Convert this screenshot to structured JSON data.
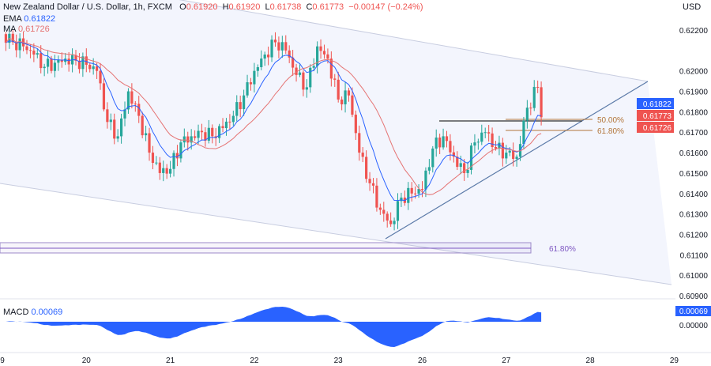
{
  "header": {
    "symbol": "New Zealand Dollar / U.S. Dollar, 1h, FXCM",
    "o_label": "O",
    "o": "0.61920",
    "h_label": "H",
    "h": "0.61920",
    "l_label": "L",
    "l": "0.61738",
    "c_label": "C",
    "c": "0.61773",
    "change": "−0.00147 (−0.24%)",
    "ema_label": "EMA",
    "ema_value": "0.61822",
    "ma_label": "MA",
    "ma_value": "0.61726"
  },
  "currency": "USD",
  "colors": {
    "up": "#26a69a",
    "down": "#ef5350",
    "ema": "#2962ff",
    "ma": "#e57373",
    "macd": "#2962ff",
    "fib": "#b2753a",
    "fib_box": "#7e57c2",
    "channel": "#d1d4dc"
  },
  "chart_data": {
    "type": "candlestick",
    "y_ticks": [
      "0.62200",
      "0.62000",
      "0.61900",
      "0.61800",
      "0.61700",
      "0.61600",
      "0.61500",
      "0.61400",
      "0.61300",
      "0.61200",
      "0.61100",
      "0.61000",
      "0.60900"
    ],
    "ylim": [
      0.609,
      0.6224
    ],
    "x_ticks": [
      "9",
      "20",
      "21",
      "22",
      "23",
      "26",
      "27",
      "28",
      "29"
    ],
    "closes": [
      {
        "t": "19 00:00",
        "c": 0.6218
      },
      {
        "t": "19 03:00",
        "c": 0.6214
      },
      {
        "t": "19 06:00",
        "c": 0.6212
      },
      {
        "t": "19 09:00",
        "c": 0.6208
      },
      {
        "t": "19 12:00",
        "c": 0.6202
      },
      {
        "t": "19 15:00",
        "c": 0.6204
      },
      {
        "t": "19 18:00",
        "c": 0.6206
      },
      {
        "t": "19 21:00",
        "c": 0.6205
      },
      {
        "t": "20 00:00",
        "c": 0.6203
      },
      {
        "t": "20 03:00",
        "c": 0.62
      },
      {
        "t": "20 06:00",
        "c": 0.6175
      },
      {
        "t": "20 09:00",
        "c": 0.6168
      },
      {
        "t": "20 12:00",
        "c": 0.619
      },
      {
        "t": "20 15:00",
        "c": 0.6178
      },
      {
        "t": "20 18:00",
        "c": 0.616
      },
      {
        "t": "20 21:00",
        "c": 0.615
      },
      {
        "t": "21 00:00",
        "c": 0.6152
      },
      {
        "t": "21 03:00",
        "c": 0.6165
      },
      {
        "t": "21 06:00",
        "c": 0.6168
      },
      {
        "t": "21 09:00",
        "c": 0.617
      },
      {
        "t": "21 12:00",
        "c": 0.6168
      },
      {
        "t": "21 15:00",
        "c": 0.6172
      },
      {
        "t": "21 18:00",
        "c": 0.6178
      },
      {
        "t": "21 21:00",
        "c": 0.6188
      },
      {
        "t": "22 00:00",
        "c": 0.62
      },
      {
        "t": "22 03:00",
        "c": 0.6208
      },
      {
        "t": "22 06:00",
        "c": 0.6214
      },
      {
        "t": "22 09:00",
        "c": 0.621
      },
      {
        "t": "22 12:00",
        "c": 0.6198
      },
      {
        "t": "22 15:00",
        "c": 0.6192
      },
      {
        "t": "22 18:00",
        "c": 0.6212
      },
      {
        "t": "22 21:00",
        "c": 0.6206
      },
      {
        "t": "23 00:00",
        "c": 0.6186
      },
      {
        "t": "23 03:00",
        "c": 0.6188
      },
      {
        "t": "23 06:00",
        "c": 0.616
      },
      {
        "t": "23 09:00",
        "c": 0.6145
      },
      {
        "t": "23 12:00",
        "c": 0.6132
      },
      {
        "t": "23 15:00",
        "c": 0.6125
      },
      {
        "t": "23 18:00",
        "c": 0.6138
      },
      {
        "t": "23 21:00",
        "c": 0.614
      },
      {
        "t": "26 00:00",
        "c": 0.6142
      },
      {
        "t": "26 03:00",
        "c": 0.6162
      },
      {
        "t": "26 06:00",
        "c": 0.6168
      },
      {
        "t": "26 09:00",
        "c": 0.6158
      },
      {
        "t": "26 12:00",
        "c": 0.615
      },
      {
        "t": "26 15:00",
        "c": 0.6165
      },
      {
        "t": "26 18:00",
        "c": 0.617
      },
      {
        "t": "26 21:00",
        "c": 0.6162
      },
      {
        "t": "27 00:00",
        "c": 0.616
      },
      {
        "t": "27 03:00",
        "c": 0.6158
      },
      {
        "t": "27 06:00",
        "c": 0.6182
      },
      {
        "t": "27 09:00",
        "c": 0.6192
      },
      {
        "t": "27 10:00",
        "c": 0.61773
      }
    ],
    "price_labels": [
      {
        "value": "0.61822",
        "color": "#2962ff"
      },
      {
        "value": "0.61773",
        "color": "#ef5350"
      },
      {
        "value": "0.61726",
        "color": "#ef5350"
      }
    ],
    "fib_labels": {
      "fib50": "50.00%",
      "fib618": "61.80%",
      "fib618_lower": "61.80%"
    },
    "macd": {
      "label": "MACD",
      "value": "0.00069",
      "y_ticks": [
        "0.00069",
        "0.00000"
      ]
    }
  }
}
